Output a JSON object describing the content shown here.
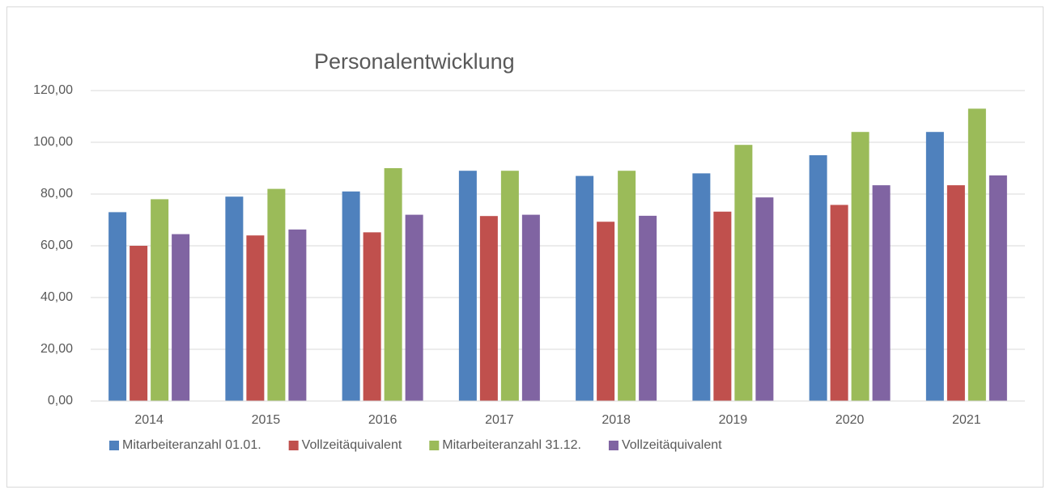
{
  "chart_data": {
    "type": "bar",
    "title": "Personalentwicklung",
    "categories": [
      "2014",
      "2015",
      "2016",
      "2017",
      "2018",
      "2019",
      "2020",
      "2021"
    ],
    "series": [
      {
        "name": "Mitarbeiteranzahl 01.01.",
        "color": "#4f81bd",
        "values": [
          73,
          79,
          81,
          89,
          87,
          88,
          95,
          104
        ]
      },
      {
        "name": "Vollzeitäquivalent",
        "color": "#c0504d",
        "values": [
          60,
          64,
          65.2,
          71.5,
          69.3,
          73.2,
          75.8,
          83.4
        ]
      },
      {
        "name": "Mitarbeiteranzahl 31.12.",
        "color": "#9bbb59",
        "values": [
          78,
          82,
          90,
          89,
          89,
          99,
          104,
          113
        ]
      },
      {
        "name": "Vollzeitäquivalent",
        "color": "#8064a2",
        "values": [
          64.5,
          66.3,
          72,
          72,
          71.6,
          78.7,
          83.4,
          87.2
        ]
      }
    ],
    "ylim": [
      0,
      120
    ],
    "yticks": [
      {
        "value": 0,
        "label": "0,00"
      },
      {
        "value": 20,
        "label": "20,00"
      },
      {
        "value": 40,
        "label": "40,00"
      },
      {
        "value": 60,
        "label": "60,00"
      },
      {
        "value": 80,
        "label": "80,00"
      },
      {
        "value": 100,
        "label": "100,00"
      },
      {
        "value": 120,
        "label": "120,00"
      }
    ],
    "grid": true,
    "legend": "bottom"
  }
}
